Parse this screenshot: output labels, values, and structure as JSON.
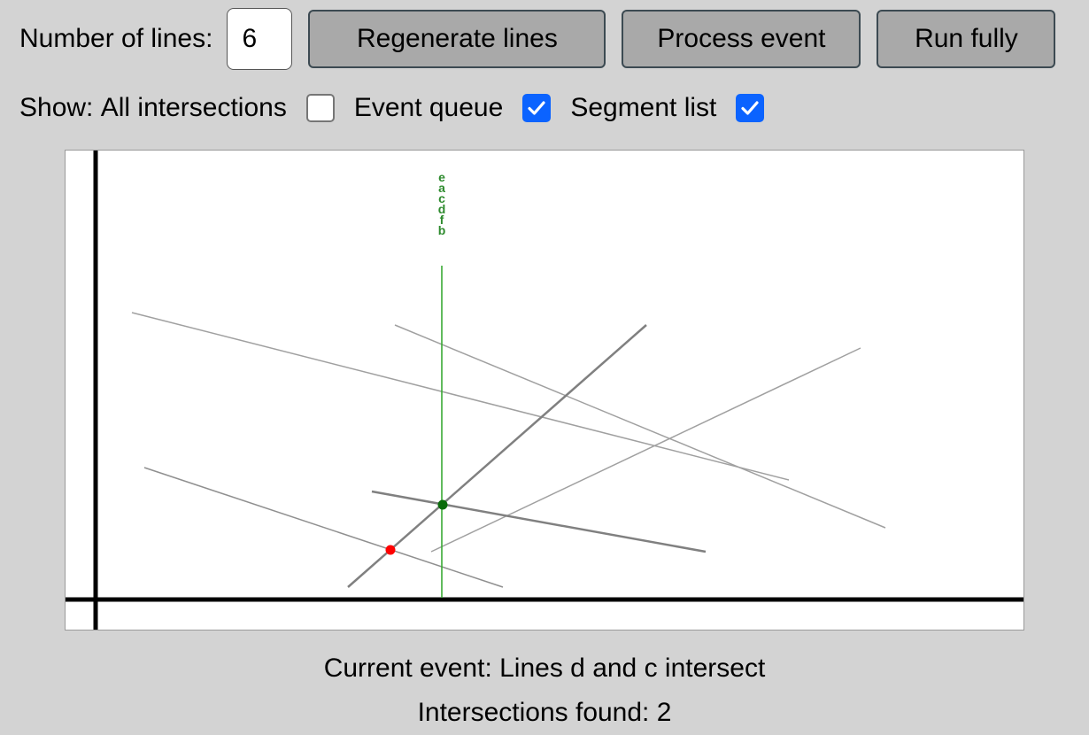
{
  "controls": {
    "num_lines_label": "Number of lines:",
    "num_lines_value": "6",
    "regenerate_label": "Regenerate lines",
    "process_label": "Process event",
    "run_label": "Run fully"
  },
  "show": {
    "prefix": "Show:",
    "all_intersections_label": "All intersections",
    "all_intersections_checked": false,
    "event_queue_label": "Event queue",
    "event_queue_checked": true,
    "segment_list_label": "Segment list",
    "segment_list_checked": true
  },
  "sweep": {
    "segment_order": [
      "e",
      "a",
      "c",
      "d",
      "f",
      "b"
    ]
  },
  "colors": {
    "sweep_line": "#3aaa35",
    "sweep_text": "#2e8b2e",
    "current_point": "#0a6b0a",
    "found_point": "#ff0000",
    "checkbox_checked": "#0b63ff"
  },
  "status": {
    "event_text": "Current event: Lines d and c intersect",
    "count_text": "Intersections found: 2"
  }
}
